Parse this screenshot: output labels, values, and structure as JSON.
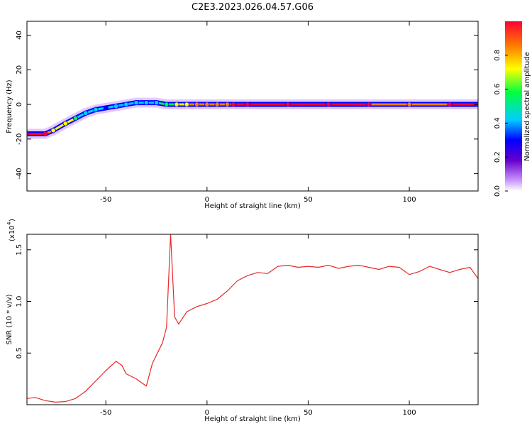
{
  "title": "C2E3.2023.026.04.57.G06",
  "colors": {
    "snr_line": "#e8292b",
    "colormap": [
      "#ffffff",
      "#cc99ff",
      "#6600cc",
      "#0000ff",
      "#00cfff",
      "#00ff40",
      "#ffff00",
      "#ff8000",
      "#ff0033"
    ]
  },
  "chart_data": [
    {
      "type": "heatmap",
      "title": "C2E3.2023.026.04.57.G06",
      "xlabel": "Height of straight line (km)",
      "ylabel": "Frequency (Hz)",
      "xlim": [
        -89,
        134
      ],
      "ylim": [
        -50,
        48
      ],
      "xticks": [
        -50,
        0,
        50,
        100
      ],
      "yticks": [
        -40,
        -20,
        0,
        20,
        40
      ],
      "colorbar": {
        "label": "Normalized spectral amplitude",
        "range": [
          0,
          1
        ],
        "ticks": [
          "0.0",
          "0.2",
          "0.4",
          "0.6",
          "0.8"
        ]
      },
      "ridge": {
        "x": [
          -89,
          -80,
          -76,
          -70,
          -65,
          -60,
          -55,
          -50,
          -45,
          -40,
          -35,
          -30,
          -25,
          -20,
          -15,
          -10,
          -5,
          0,
          5,
          10,
          13,
          20,
          40,
          60,
          80,
          100,
          120,
          134
        ],
        "freq": [
          -17,
          -17,
          -15,
          -11,
          -8,
          -5,
          -3,
          -2,
          -1,
          0,
          1,
          1,
          1,
          0,
          0,
          0,
          0,
          0,
          0,
          0,
          0,
          0,
          0,
          0,
          0,
          0,
          0,
          0
        ],
        "amplitude": [
          0.95,
          0.95,
          0.7,
          0.8,
          0.6,
          0.5,
          0.5,
          0.4,
          0.5,
          0.5,
          0.55,
          0.5,
          0.55,
          0.6,
          0.7,
          0.8,
          0.85,
          0.9,
          0.9,
          0.9,
          0.95,
          1.0,
          1.0,
          0.95,
          0.95,
          0.9,
          0.95,
          0.95
        ]
      }
    },
    {
      "type": "line",
      "xlabel": "Height of straight line (km)",
      "ylabel": "SNR (10 * v/v)",
      "scale_note": "(x10",
      "scale_exp": "4",
      "xlim": [
        -89,
        134
      ],
      "ylim": [
        0,
        16500
      ],
      "xticks": [
        -50,
        0,
        50,
        100
      ],
      "yticks": [
        0.5,
        1.0,
        1.5
      ],
      "ytick_labels": [
        "0.5",
        "1.0",
        "1.5"
      ],
      "series": [
        {
          "x": [
            -89,
            -85,
            -80,
            -75,
            -70,
            -65,
            -60,
            -55,
            -50,
            -45,
            -42,
            -40,
            -35,
            -30,
            -27,
            -25,
            -22,
            -20,
            -18,
            -16,
            -14,
            -10,
            -5,
            0,
            5,
            10,
            15,
            20,
            25,
            30,
            35,
            40,
            45,
            50,
            55,
            60,
            65,
            70,
            75,
            80,
            85,
            90,
            95,
            100,
            105,
            110,
            115,
            120,
            125,
            130,
            134
          ],
          "y": [
            600,
            700,
            400,
            250,
            300,
            600,
            1300,
            2300,
            3300,
            4200,
            3800,
            3000,
            2500,
            1800,
            4000,
            4800,
            6000,
            7500,
            16500,
            8500,
            7800,
            9000,
            9500,
            9800,
            10200,
            11000,
            12000,
            12500,
            12800,
            12700,
            13400,
            13500,
            13300,
            13400,
            13300,
            13500,
            13200,
            13400,
            13500,
            13300,
            13100,
            13400,
            13300,
            12600,
            12900,
            13400,
            13100,
            12800,
            13100,
            13300,
            12200
          ]
        }
      ]
    }
  ]
}
